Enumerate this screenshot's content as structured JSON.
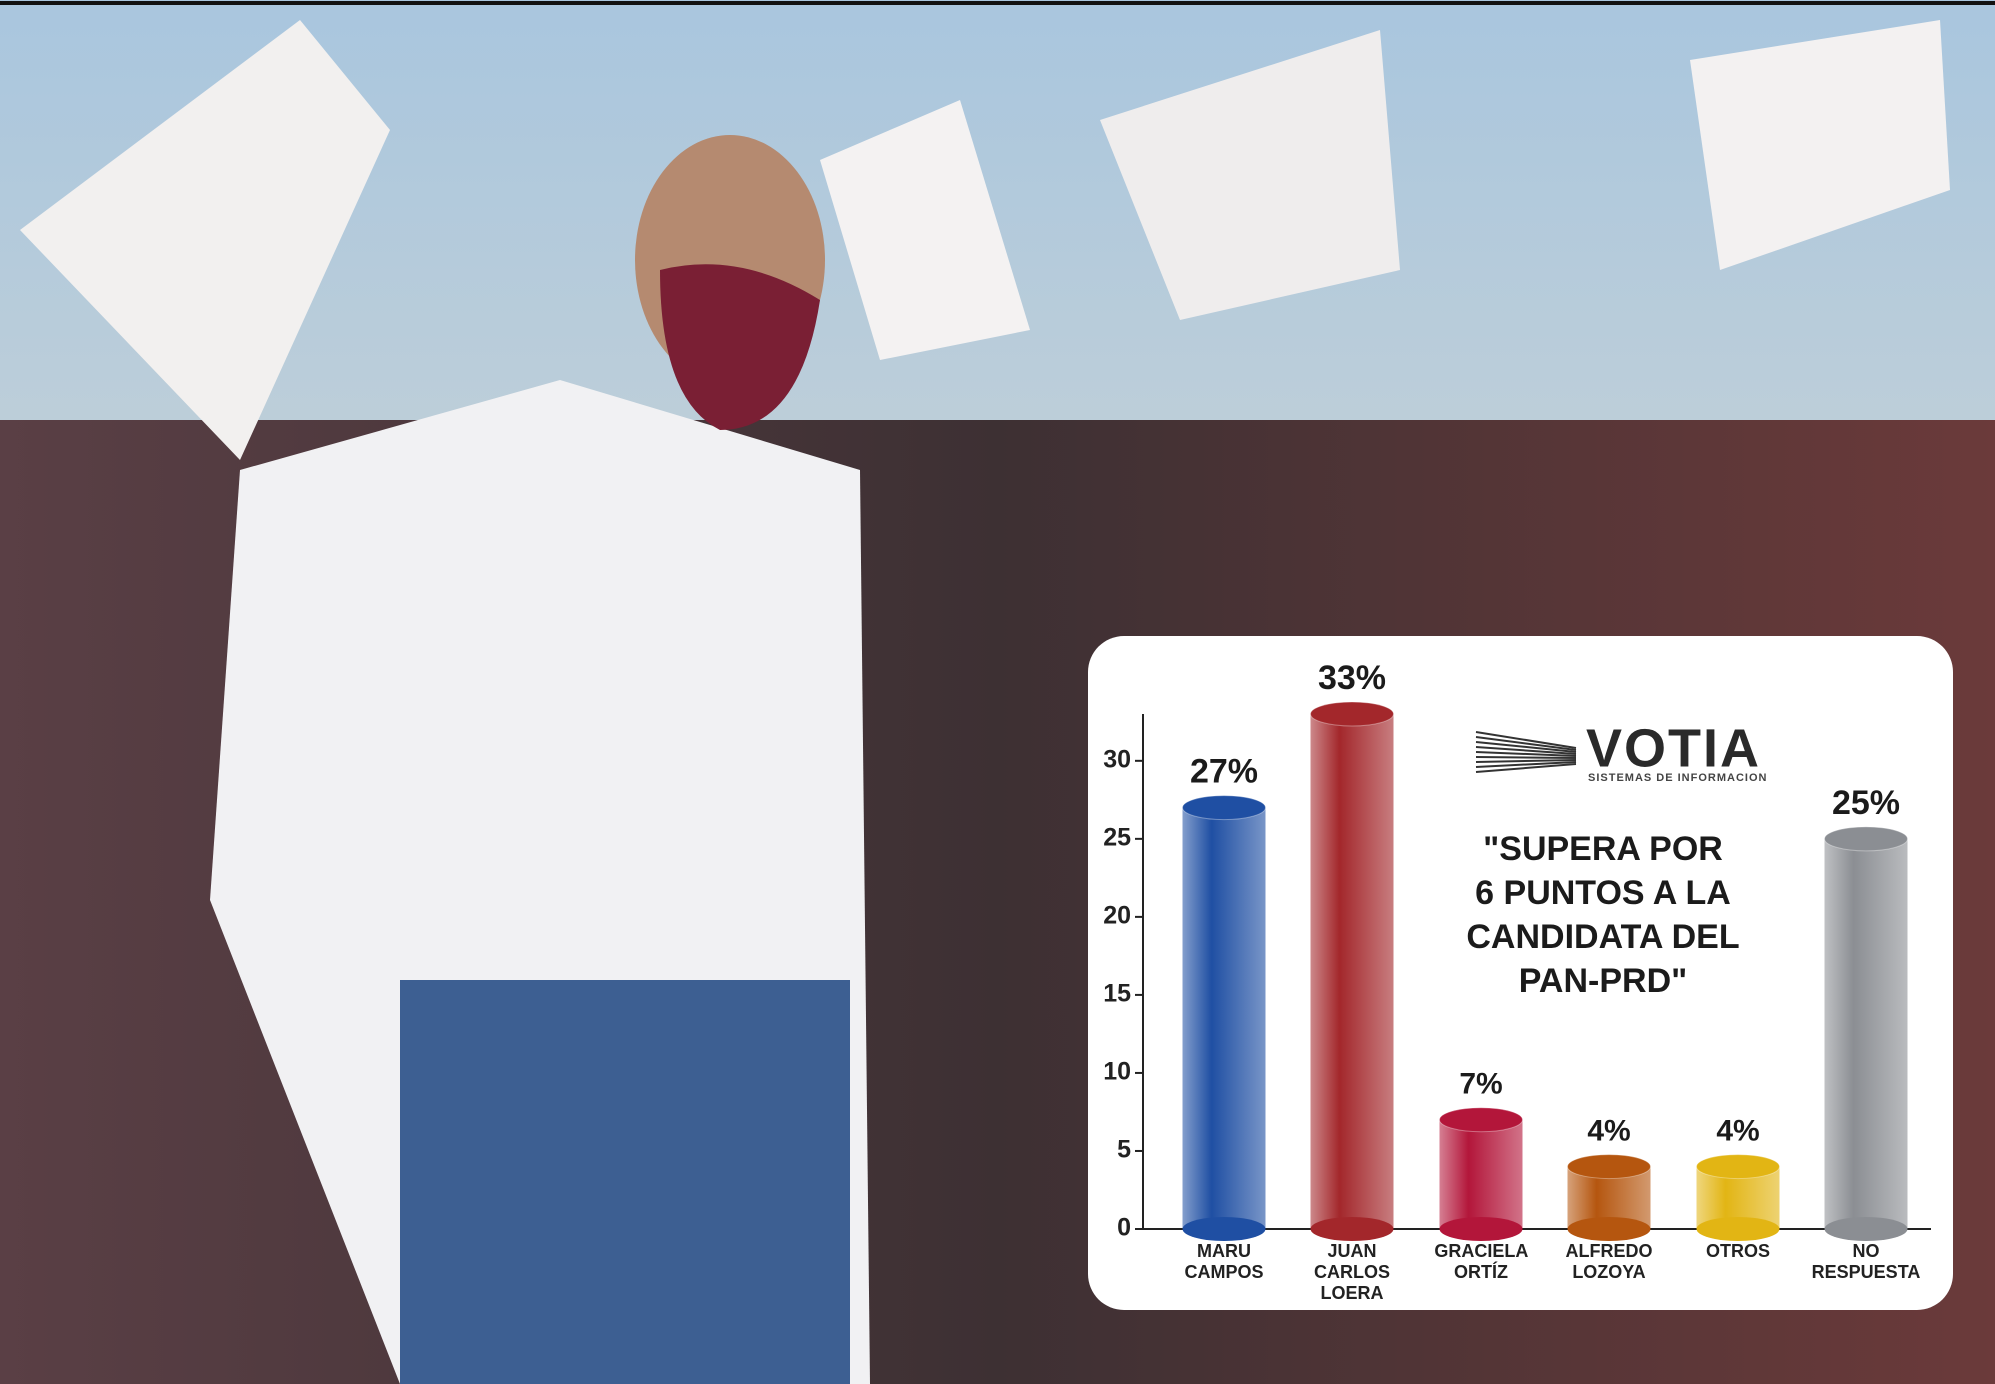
{
  "chart_data": {
    "type": "bar",
    "categories": [
      "MARU CAMPOS",
      "JUAN CARLOS LOERA",
      "GRACIELA ORTÍZ",
      "ALFREDO LOZOYA",
      "OTROS",
      "NO RESPUESTA"
    ],
    "values": [
      27,
      33,
      7,
      4,
      4,
      25
    ],
    "value_labels": [
      "27%",
      "33%",
      "7%",
      "4%",
      "4%",
      "25%"
    ],
    "colors": [
      "#1f4fa3",
      "#a3272b",
      "#b3163a",
      "#b5560f",
      "#e2b514",
      "#8b8e93"
    ],
    "ylim": [
      0,
      33
    ],
    "yticks": [
      0,
      5,
      10,
      15,
      20,
      25,
      30
    ],
    "logo": {
      "name": "VOTIA",
      "tagline": "SISTEMAS DE INFORMACION"
    },
    "annotation": [
      "\"SUPERA POR",
      "6 PUNTOS A LA",
      "CANDIDATA DEL",
      "PAN-PRD\""
    ]
  }
}
